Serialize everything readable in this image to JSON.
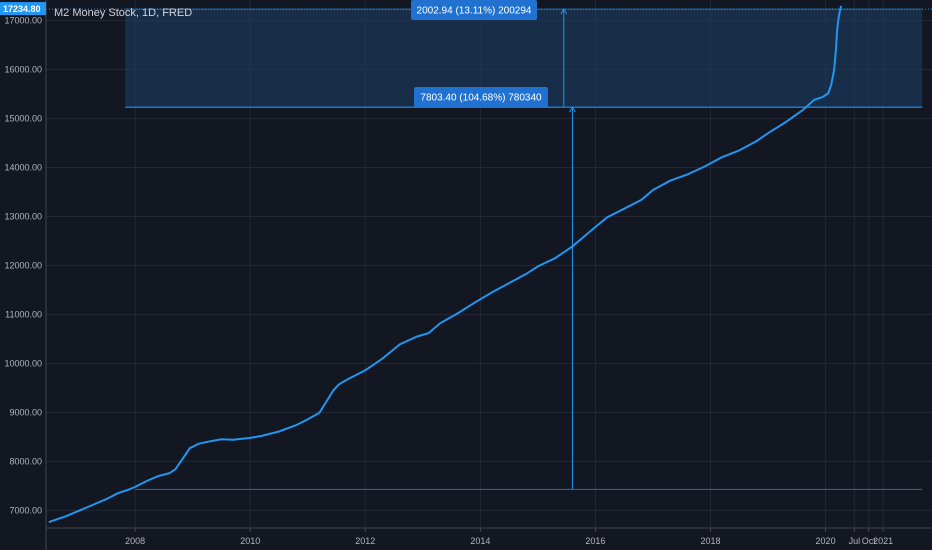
{
  "header": {
    "title": "M2 Money Stock, 1D, FRED"
  },
  "current_price": {
    "label": "17234.80",
    "value": 17234.8
  },
  "measure_upper": {
    "label": "2002.94 (13.11%) 200294",
    "from": 15231.86,
    "to": 17234.8
  },
  "measure_lower": {
    "label": "7803.40 (104.68%) 780340",
    "from": 7428.46,
    "to": 15231.86
  },
  "colors": {
    "background": "#131722",
    "line": "#2196f3",
    "zone_fill": "#1c3a5e",
    "grid": "#252a36",
    "text": "#b2b5be",
    "tag_bg": "#2172d0"
  },
  "chart_data": {
    "type": "line",
    "title": "M2 Money Stock, 1D, FRED",
    "xlabel": "",
    "ylabel": "",
    "x_range": [
      2006.45,
      2021.85
    ],
    "ylim": [
      6640,
      17420
    ],
    "y_ticks": [
      {
        "value": 7000,
        "label": "7000.00"
      },
      {
        "value": 8000,
        "label": "8000.00"
      },
      {
        "value": 9000,
        "label": "9000.00"
      },
      {
        "value": 10000,
        "label": "10000.00"
      },
      {
        "value": 11000,
        "label": "11000.00"
      },
      {
        "value": 12000,
        "label": "12000.00"
      },
      {
        "value": 13000,
        "label": "13000.00"
      },
      {
        "value": 14000,
        "label": "14000.00"
      },
      {
        "value": 15000,
        "label": "15000.00"
      },
      {
        "value": 16000,
        "label": "16000.00"
      },
      {
        "value": 17000,
        "label": "17000.00"
      }
    ],
    "x_ticks": [
      {
        "value": 2008,
        "label": "2008"
      },
      {
        "value": 2010,
        "label": "2010"
      },
      {
        "value": 2012,
        "label": "2012"
      },
      {
        "value": 2014,
        "label": "2014"
      },
      {
        "value": 2016,
        "label": "2016"
      },
      {
        "value": 2018,
        "label": "2018"
      },
      {
        "value": 2020,
        "label": "2020"
      },
      {
        "value": 2020.5,
        "label": "Jul"
      },
      {
        "value": 2020.75,
        "label": "Oct"
      },
      {
        "value": 2021,
        "label": "2021"
      }
    ],
    "grid": true,
    "series": [
      {
        "x": [
          2006.5,
          2006.8,
          2007.0,
          2007.3,
          2007.5,
          2007.7,
          2007.9,
          2008.0,
          2008.2,
          2008.4,
          2008.6,
          2008.7,
          2008.8,
          2008.95,
          2009.1,
          2009.3,
          2009.5,
          2009.7,
          2010.0,
          2010.2,
          2010.5,
          2010.8,
          2011.0,
          2011.2,
          2011.45,
          2011.55,
          2011.7,
          2012.0,
          2012.3,
          2012.6,
          2012.9,
          2013.1,
          2013.3,
          2013.6,
          2013.9,
          2014.2,
          2014.5,
          2014.8,
          2015.0,
          2015.3,
          2015.6,
          2015.9,
          2016.2,
          2016.5,
          2016.8,
          2017.0,
          2017.3,
          2017.6,
          2017.9,
          2018.2,
          2018.5,
          2018.8,
          2019.0,
          2019.3,
          2019.6,
          2019.8,
          2019.95,
          2020.05,
          2020.1,
          2020.15,
          2020.18,
          2020.2,
          2020.22,
          2020.25,
          2020.27
        ],
        "y": [
          6760,
          6880,
          6980,
          7130,
          7230,
          7350,
          7430,
          7480,
          7600,
          7700,
          7760,
          7840,
          8010,
          8270,
          8360,
          8410,
          8450,
          8440,
          8480,
          8520,
          8610,
          8740,
          8860,
          8990,
          9460,
          9580,
          9680,
          9860,
          10100,
          10390,
          10550,
          10620,
          10820,
          11020,
          11240,
          11450,
          11640,
          11830,
          11980,
          12150,
          12390,
          12690,
          12980,
          13160,
          13340,
          13540,
          13730,
          13860,
          14020,
          14210,
          14350,
          14540,
          14700,
          14920,
          15170,
          15380,
          15440,
          15520,
          15700,
          16000,
          16400,
          16800,
          17000,
          17200,
          17300
        ]
      }
    ]
  }
}
